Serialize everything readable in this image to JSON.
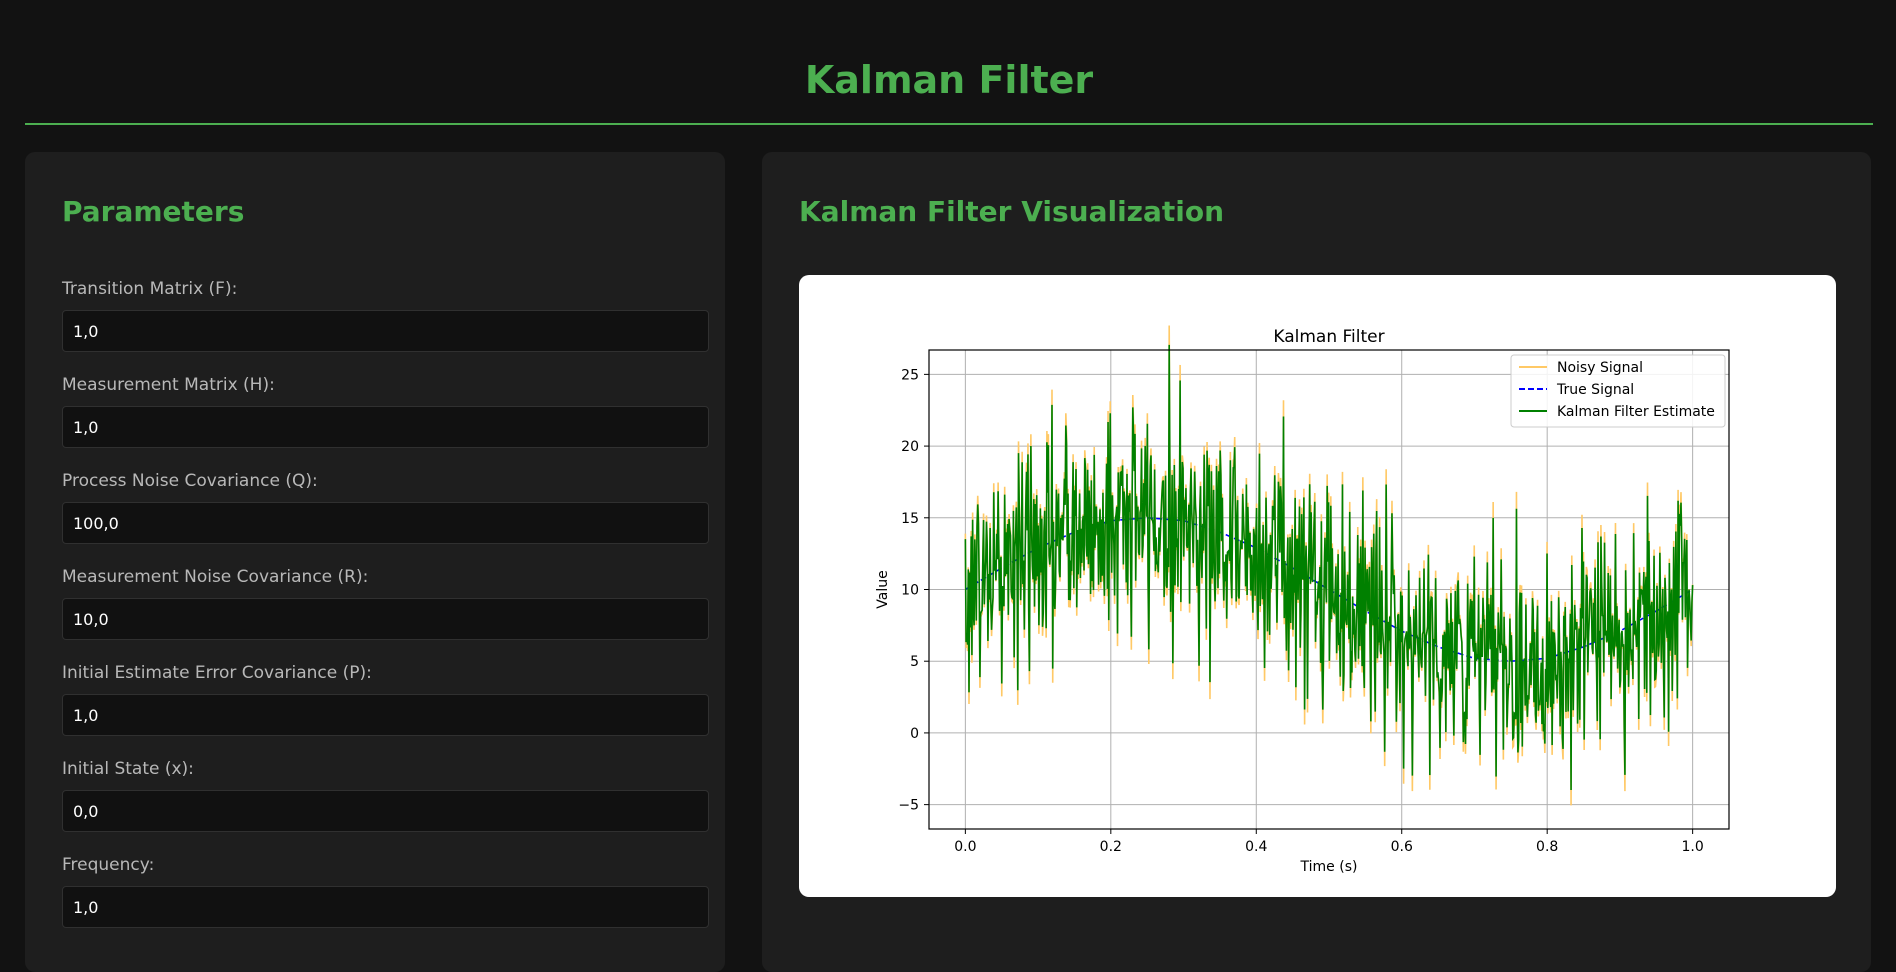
{
  "app": {
    "title": "Kalman Filter"
  },
  "params": {
    "title": "Parameters",
    "fields": [
      {
        "label": "Transition Matrix (F):",
        "value": "1,0"
      },
      {
        "label": "Measurement Matrix (H):",
        "value": "1,0"
      },
      {
        "label": "Process Noise Covariance (Q):",
        "value": "100,0"
      },
      {
        "label": "Measurement Noise Covariance (R):",
        "value": "10,0"
      },
      {
        "label": "Initial Estimate Error Covariance (P):",
        "value": "1,0"
      },
      {
        "label": "Initial State (x):",
        "value": "0,0"
      },
      {
        "label": "Frequency:",
        "value": "1,0"
      }
    ]
  },
  "viz": {
    "title": "Kalman Filter Visualization"
  },
  "colors": {
    "accent": "#4caf50",
    "noisy": "#ffc966",
    "true": "#0000ff",
    "estimate": "#008000"
  },
  "chart_data": {
    "type": "line",
    "title": "Kalman Filter",
    "xlabel": "Time (s)",
    "ylabel": "Value",
    "xlim": [
      -0.05,
      1.05
    ],
    "ylim": [
      -6.7,
      26.7
    ],
    "xticks": [
      0.0,
      0.2,
      0.4,
      0.6,
      0.8,
      1.0
    ],
    "xtick_labels": [
      "0.0",
      "0.2",
      "0.4",
      "0.6",
      "0.8",
      "1.0"
    ],
    "yticks": [
      -5,
      0,
      5,
      10,
      15,
      20,
      25
    ],
    "ytick_labels": [
      "−5",
      "0",
      "5",
      "10",
      "15",
      "20",
      "25"
    ],
    "grid": true,
    "legend_position": "top-right",
    "series": [
      {
        "name": "Noisy Signal",
        "style": "solid",
        "color": "#ffc966"
      },
      {
        "name": "True Signal",
        "style": "dashed",
        "color": "#0000ff",
        "x": [
          0.0,
          0.05,
          0.1,
          0.15,
          0.2,
          0.25,
          0.3,
          0.35,
          0.4,
          0.45,
          0.5,
          0.55,
          0.6,
          0.65,
          0.7,
          0.75,
          0.8,
          0.85,
          0.9,
          0.95,
          1.0
        ],
        "y": [
          10.0,
          11.5,
          12.9,
          14.0,
          14.8,
          15.0,
          14.8,
          14.0,
          12.9,
          11.5,
          10.0,
          8.5,
          7.1,
          6.0,
          5.2,
          5.0,
          5.2,
          6.0,
          7.1,
          8.5,
          10.0
        ]
      },
      {
        "name": "Kalman Filter Estimate",
        "style": "solid",
        "color": "#008000"
      }
    ]
  }
}
